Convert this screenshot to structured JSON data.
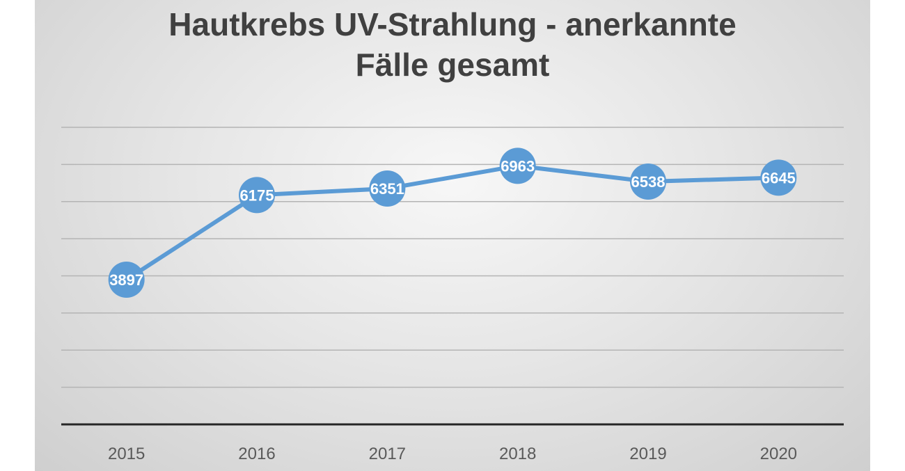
{
  "chart_data": {
    "type": "line",
    "title_lines": [
      "Hautkrebs UV-Strahlung - anerkannte",
      "Fälle gesamt"
    ],
    "categories": [
      "2015",
      "2016",
      "2017",
      "2018",
      "2019",
      "2020"
    ],
    "series": [
      {
        "values": [
          3897,
          6175,
          6351,
          6963,
          6538,
          6645
        ],
        "color": "#5b9bd5"
      }
    ],
    "data_labels": [
      "3897",
      "6175",
      "6351",
      "6963",
      "6538",
      "6645"
    ],
    "ylim": [
      0,
      8000
    ],
    "y_gridlines": [
      1000,
      2000,
      3000,
      4000,
      5000,
      6000,
      7000,
      8000
    ],
    "y_tick_labels_shown": false,
    "grid": true,
    "legend": "none",
    "xlabel": "",
    "ylabel": ""
  }
}
